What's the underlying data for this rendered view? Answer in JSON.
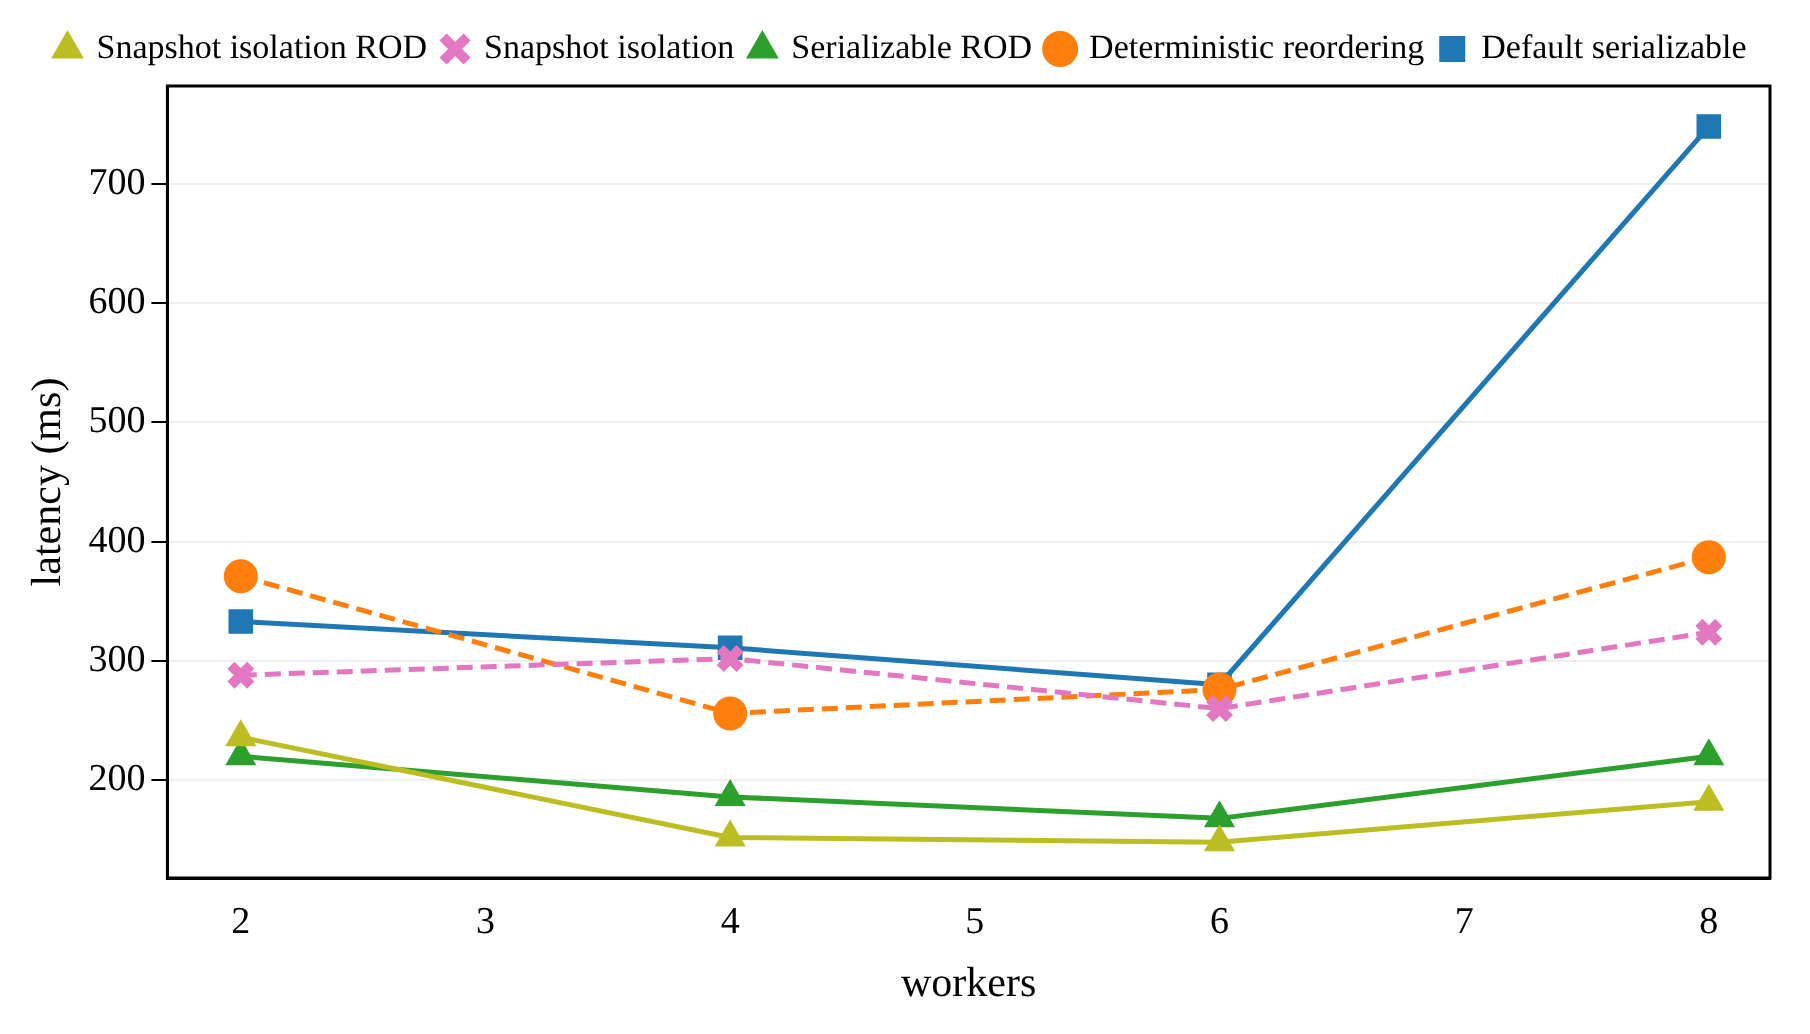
{
  "chart_data": {
    "type": "line",
    "xlabel": "workers",
    "ylabel": "latency (ms)",
    "x": [
      2,
      4,
      6,
      8
    ],
    "series": [
      {
        "name": "Default serializable",
        "color": "#1f77b4",
        "marker": "square",
        "line_style": "solid",
        "values": [
          333,
          311,
          280,
          748
        ]
      },
      {
        "name": "Deterministic reordering",
        "color": "#ff7f0e",
        "marker": "circle",
        "line_style": "dashed",
        "values": [
          371,
          256,
          276,
          387
        ]
      },
      {
        "name": "Serializable ROD",
        "color": "#2ca02c",
        "marker": "triangle",
        "line_style": "solid",
        "values": [
          220,
          186,
          168,
          220
        ]
      },
      {
        "name": "Snapshot isolation",
        "color": "#e377c2",
        "marker": "cross",
        "line_style": "dashed",
        "values": [
          288,
          302,
          260,
          324
        ]
      },
      {
        "name": "Snapshot isolation ROD",
        "color": "#bcbd22",
        "marker": "triangle",
        "line_style": "solid",
        "values": [
          236,
          152,
          148,
          182
        ]
      }
    ],
    "xlim": [
      1.7,
      8.25
    ],
    "xticks": [
      2,
      3,
      4,
      5,
      6,
      7,
      8
    ],
    "ylim": [
      118,
      782
    ],
    "yticks": [
      200,
      300,
      400,
      500,
      600,
      700
    ],
    "grid": "y",
    "legend": "top"
  }
}
